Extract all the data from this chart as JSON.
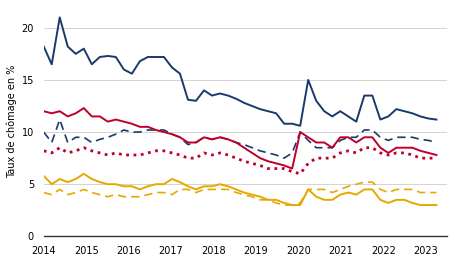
{
  "ylabel": "Taux de chômage en %",
  "ylim": [
    0,
    22
  ],
  "yticks": [
    0,
    5,
    10,
    15,
    20
  ],
  "xlim": [
    2014.0,
    2023.5
  ],
  "background_color": "#ffffff",
  "grid_color": "#cccccc",
  "navy_solid": [
    18.2,
    16.5,
    21.0,
    18.2,
    17.5,
    18.0,
    16.5,
    17.2,
    17.3,
    17.2,
    16.0,
    15.6,
    16.8,
    17.2,
    17.2,
    17.2,
    16.2,
    15.6,
    13.1,
    13.0,
    14.0,
    13.5,
    13.7,
    13.5,
    13.2,
    12.8,
    12.5,
    12.2,
    12.0,
    11.8,
    10.8,
    10.8,
    10.6,
    15.0,
    13.0,
    12.0,
    11.5,
    12.0,
    11.5,
    11.0,
    13.5,
    13.5,
    11.2,
    11.5,
    12.2,
    12.0,
    11.8,
    11.5,
    11.3,
    11.2
  ],
  "navy_dashed": [
    10.0,
    9.0,
    11.2,
    9.0,
    9.5,
    9.5,
    9.0,
    9.3,
    9.5,
    9.8,
    10.2,
    10.0,
    10.0,
    10.2,
    10.2,
    10.2,
    9.8,
    9.5,
    8.8,
    9.0,
    9.5,
    9.3,
    9.5,
    9.3,
    9.0,
    8.8,
    8.5,
    8.2,
    8.0,
    7.8,
    7.5,
    8.0,
    10.0,
    9.2,
    8.5,
    8.5,
    8.5,
    9.2,
    9.5,
    9.5,
    10.2,
    10.2,
    9.5,
    9.2,
    9.5,
    9.5,
    9.5,
    9.3,
    9.2,
    9.0
  ],
  "red_solid": [
    12.0,
    11.8,
    12.0,
    11.5,
    11.8,
    12.3,
    11.5,
    11.5,
    11.0,
    11.2,
    11.0,
    10.8,
    10.5,
    10.5,
    10.2,
    10.0,
    9.8,
    9.5,
    9.0,
    9.0,
    9.5,
    9.3,
    9.5,
    9.3,
    9.0,
    8.5,
    8.0,
    7.5,
    7.2,
    7.0,
    6.8,
    6.5,
    10.0,
    9.5,
    9.0,
    9.0,
    8.5,
    9.5,
    9.5,
    9.0,
    9.5,
    9.5,
    8.5,
    8.0,
    8.5,
    8.5,
    8.5,
    8.2,
    8.0,
    7.8
  ],
  "red_dotted": [
    8.2,
    8.0,
    8.5,
    8.0,
    8.2,
    8.5,
    8.2,
    8.0,
    7.8,
    8.0,
    7.8,
    7.8,
    7.8,
    8.0,
    8.2,
    8.2,
    8.0,
    7.8,
    7.5,
    7.5,
    8.0,
    7.8,
    8.0,
    7.8,
    7.5,
    7.2,
    7.0,
    6.8,
    6.5,
    6.5,
    6.5,
    6.2,
    6.0,
    7.0,
    7.5,
    7.5,
    7.5,
    8.0,
    8.2,
    8.0,
    8.5,
    8.5,
    8.0,
    7.8,
    8.0,
    8.0,
    7.8,
    7.5,
    7.5,
    7.5
  ],
  "yellow_solid": [
    5.8,
    5.0,
    5.5,
    5.2,
    5.5,
    6.0,
    5.5,
    5.2,
    5.0,
    5.0,
    4.8,
    4.8,
    4.5,
    4.8,
    5.0,
    5.0,
    5.5,
    5.2,
    4.8,
    4.5,
    4.8,
    4.8,
    5.0,
    4.8,
    4.5,
    4.2,
    4.0,
    3.8,
    3.5,
    3.5,
    3.2,
    3.0,
    3.0,
    4.5,
    3.8,
    3.5,
    3.5,
    4.0,
    4.2,
    4.0,
    4.5,
    4.5,
    3.5,
    3.2,
    3.5,
    3.5,
    3.2,
    3.0,
    3.0,
    3.0
  ],
  "yellow_dashed": [
    4.2,
    4.0,
    4.5,
    4.0,
    4.2,
    4.5,
    4.2,
    4.0,
    3.8,
    4.0,
    3.8,
    3.8,
    3.8,
    4.0,
    4.2,
    4.2,
    4.0,
    4.5,
    4.5,
    4.2,
    4.5,
    4.5,
    4.5,
    4.5,
    4.2,
    4.0,
    3.8,
    3.5,
    3.5,
    3.2,
    3.0,
    3.0,
    3.2,
    4.5,
    4.5,
    4.5,
    4.2,
    4.5,
    4.8,
    5.0,
    5.2,
    5.2,
    4.5,
    4.2,
    4.5,
    4.5,
    4.5,
    4.2,
    4.2,
    4.2
  ],
  "navy_color": "#1a3a6b",
  "red_color": "#c0002a",
  "yellow_color": "#e6a800",
  "n_points": 50,
  "x_start": 2014.0,
  "x_end": 2023.25
}
